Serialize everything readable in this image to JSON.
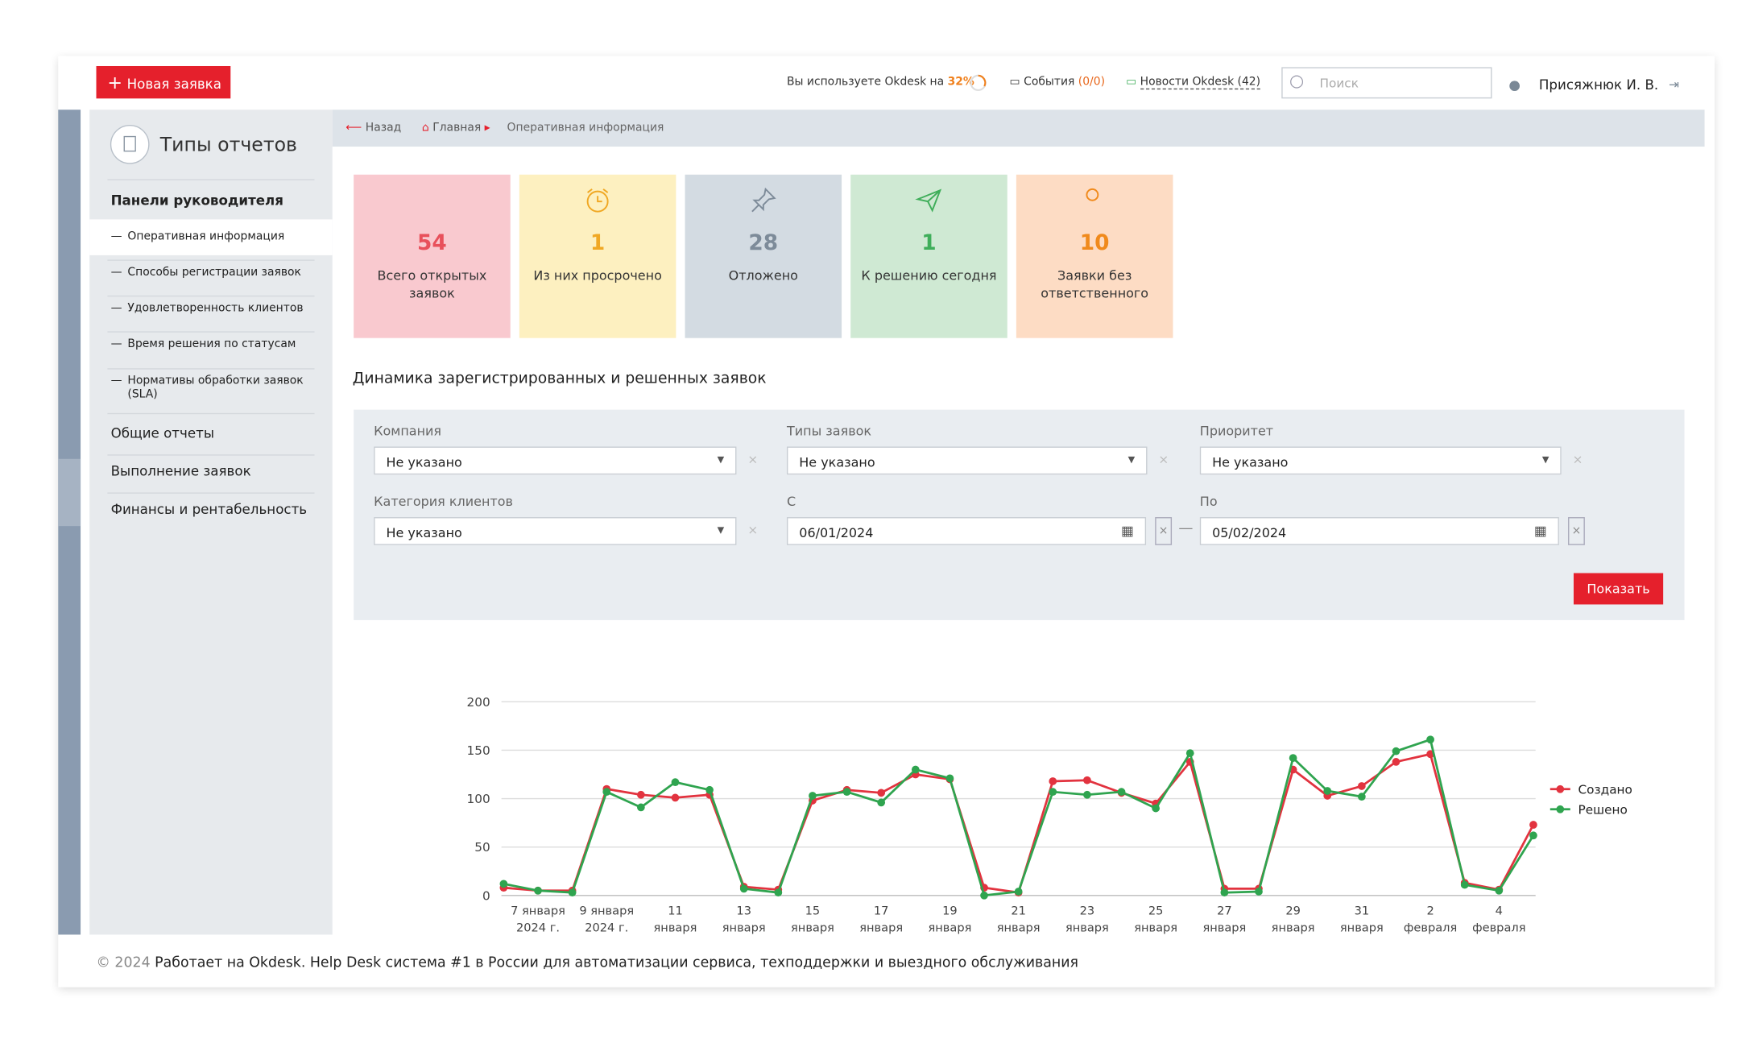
{
  "top_bar": {
    "new_button": "Новая заявка",
    "usage_text": "Вы используете Okdesk на",
    "usage_percent": "32%",
    "events": "События",
    "events_count": "(0/0)",
    "news": "Новости Okdesk (42)",
    "search_placeholder": "Поиск",
    "user": "Присяжнюк И. В."
  },
  "sidebar": {
    "title": "Типы отчетов",
    "section": "Панели руководителя",
    "items": [
      "Оперативная информация",
      "Способы регистрации заявок",
      "Удовлетворенность клиентов",
      "Время решения по статусам",
      "Нормативы обработки заявок (SLA)"
    ],
    "groups": [
      "Общие отчеты",
      "Выполнение заявок",
      "Финансы и рентабельность"
    ]
  },
  "breadcrumb": {
    "back": "Назад",
    "home": "Главная",
    "current": "Оперативная информация"
  },
  "tiles": [
    {
      "value": "54",
      "label": "Всего открытых заявок"
    },
    {
      "value": "1",
      "label": "Из них просрочено"
    },
    {
      "value": "28",
      "label": "Отложено"
    },
    {
      "value": "1",
      "label": "К решению сегодня"
    },
    {
      "value": "10",
      "label": "Заявки без ответственного"
    }
  ],
  "section_title": "Динамика зарегистрированных и решенных заявок",
  "filters": {
    "fields": [
      {
        "label": "Компания",
        "value": "Не указано"
      },
      {
        "label": "Типы заявок",
        "value": "Не указано"
      },
      {
        "label": "Приоритет",
        "value": "Не указано"
      },
      {
        "label": "Категория клиентов",
        "value": "Не указано"
      },
      {
        "label": "С",
        "value": "06/01/2024"
      },
      {
        "label": "По",
        "value": "05/02/2024"
      }
    ],
    "button": "Показать"
  },
  "chart_data": {
    "type": "line",
    "categories": [
      null,
      [
        "7 января",
        "2024 г."
      ],
      null,
      [
        "9 января",
        "2024 г."
      ],
      null,
      [
        "11",
        "января"
      ],
      null,
      [
        "13",
        "января"
      ],
      null,
      [
        "15",
        "января"
      ],
      null,
      [
        "17",
        "января"
      ],
      null,
      [
        "19",
        "января"
      ],
      null,
      [
        "21",
        "января"
      ],
      null,
      [
        "23",
        "января"
      ],
      null,
      [
        "25",
        "января"
      ],
      null,
      [
        "27",
        "января"
      ],
      null,
      [
        "29",
        "января"
      ],
      null,
      [
        "31",
        "января"
      ],
      null,
      [
        "2",
        "февраля"
      ],
      null,
      [
        "4",
        "февраля"
      ],
      null
    ],
    "series": [
      {
        "name": "Создано",
        "color": "#e2333f",
        "values": [
          8,
          5,
          5,
          110,
          104,
          101,
          104,
          9,
          6,
          98,
          109,
          106,
          125,
          120,
          8,
          3,
          118,
          119,
          106,
          95,
          138,
          7,
          7,
          130,
          103,
          113,
          138,
          146,
          13,
          6,
          73
        ]
      },
      {
        "name": "Решено",
        "color": "#2fa44f",
        "values": [
          12,
          5,
          3,
          107,
          91,
          117,
          109,
          7,
          3,
          103,
          107,
          96,
          130,
          121,
          0,
          4,
          107,
          104,
          107,
          90,
          147,
          3,
          4,
          142,
          108,
          102,
          149,
          161,
          11,
          5,
          62
        ]
      }
    ],
    "ylim": [
      0,
      200
    ],
    "yticks": [
      0,
      50,
      100,
      150,
      200
    ],
    "grid": true,
    "legend": "right"
  },
  "footer": {
    "copyright": "© 2024",
    "text": "Работает на Okdesk. Help Desk система #1 в России для автоматизации сервиса, техподдержки и выездного обслуживания"
  }
}
